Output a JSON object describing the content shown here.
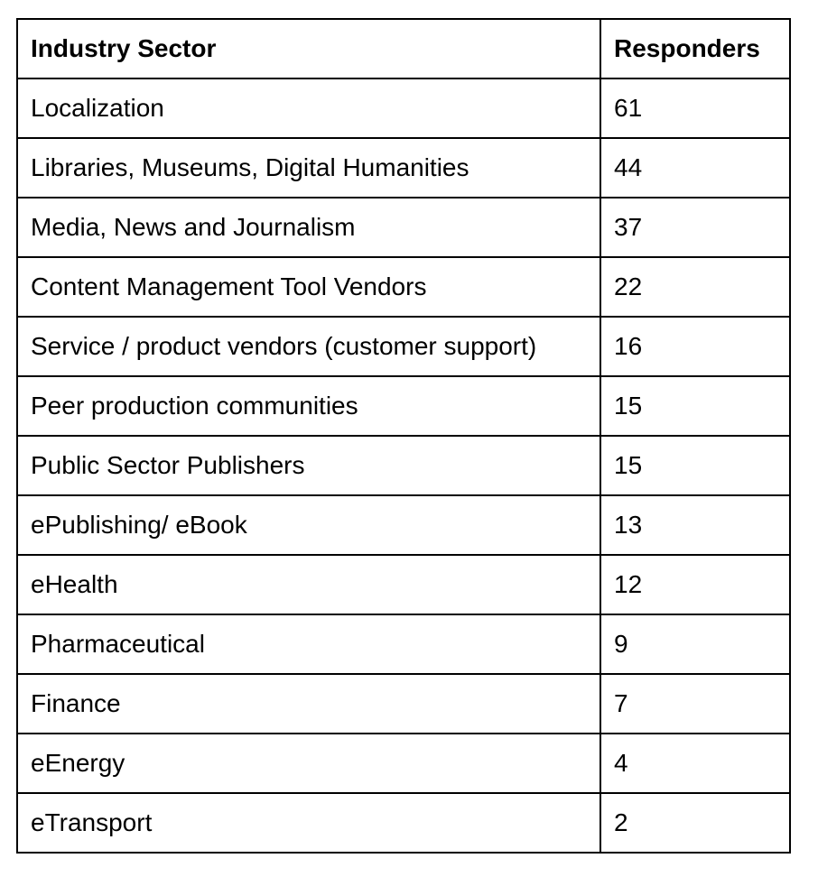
{
  "table": {
    "headers": {
      "sector": "Industry Sector",
      "responders": "Responders"
    },
    "rows": [
      {
        "sector": "Localization",
        "responders": "61"
      },
      {
        "sector": "Libraries, Museums, Digital Humanities",
        "responders": "44"
      },
      {
        "sector": "Media, News and Journalism",
        "responders": "37"
      },
      {
        "sector": "Content Management Tool Vendors",
        "responders": "22"
      },
      {
        "sector": "Service / product vendors (customer support)",
        "responders": "16"
      },
      {
        "sector": "Peer production communities",
        "responders": "15"
      },
      {
        "sector": "Public Sector Publishers",
        "responders": "15"
      },
      {
        "sector": "ePublishing/ eBook",
        "responders": "13"
      },
      {
        "sector": "eHealth",
        "responders": "12"
      },
      {
        "sector": "Pharmaceutical",
        "responders": "9"
      },
      {
        "sector": "Finance",
        "responders": "7"
      },
      {
        "sector": "eEnergy",
        "responders": "4"
      },
      {
        "sector": "eTransport",
        "responders": "2"
      }
    ]
  }
}
